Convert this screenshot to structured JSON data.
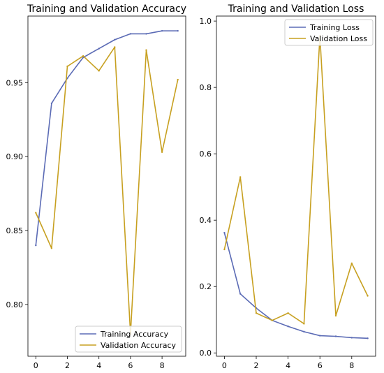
{
  "colors": {
    "training": "#5b6bb5",
    "validation": "#c7a020"
  },
  "chart_data": [
    {
      "type": "line",
      "title": "Training and Validation Accuracy",
      "x": [
        0,
        1,
        2,
        3,
        4,
        5,
        6,
        7,
        8,
        9
      ],
      "xticks": [
        0,
        2,
        4,
        6,
        8
      ],
      "xlim": [
        -0.5,
        9.5
      ],
      "ylim": [
        0.765,
        0.995
      ],
      "yticks": [
        0.8,
        0.85,
        0.9,
        0.95
      ],
      "ytick_labels": [
        "0.80",
        "0.85",
        "0.90",
        "0.95"
      ],
      "legend_position": "lower-right",
      "series": [
        {
          "name": "Training Accuracy",
          "color_key": "training",
          "values": [
            0.84,
            0.936,
            0.953,
            0.967,
            0.973,
            0.979,
            0.983,
            0.983,
            0.985,
            0.985
          ]
        },
        {
          "name": "Validation Accuracy",
          "color_key": "validation",
          "values": [
            0.862,
            0.838,
            0.961,
            0.968,
            0.958,
            0.974,
            0.78,
            0.972,
            0.903,
            0.952
          ]
        }
      ]
    },
    {
      "type": "line",
      "title": "Training and Validation Loss",
      "x": [
        0,
        1,
        2,
        3,
        4,
        5,
        6,
        7,
        8,
        9
      ],
      "xticks": [
        0,
        2,
        4,
        6,
        8
      ],
      "xlim": [
        -0.5,
        9.5
      ],
      "ylim": [
        -0.01,
        1.015
      ],
      "yticks": [
        0.0,
        0.2,
        0.4,
        0.6,
        0.8,
        1.0
      ],
      "ytick_labels": [
        "0.0",
        "0.2",
        "0.4",
        "0.6",
        "0.8",
        "1.0"
      ],
      "legend_position": "top-right",
      "series": [
        {
          "name": "Training Loss",
          "color_key": "training",
          "values": [
            0.362,
            0.178,
            0.135,
            0.098,
            0.08,
            0.064,
            0.052,
            0.05,
            0.046,
            0.044
          ]
        },
        {
          "name": "Validation Loss",
          "color_key": "validation",
          "values": [
            0.312,
            0.53,
            0.12,
            0.098,
            0.12,
            0.088,
            0.955,
            0.112,
            0.27,
            0.172
          ]
        }
      ]
    }
  ]
}
